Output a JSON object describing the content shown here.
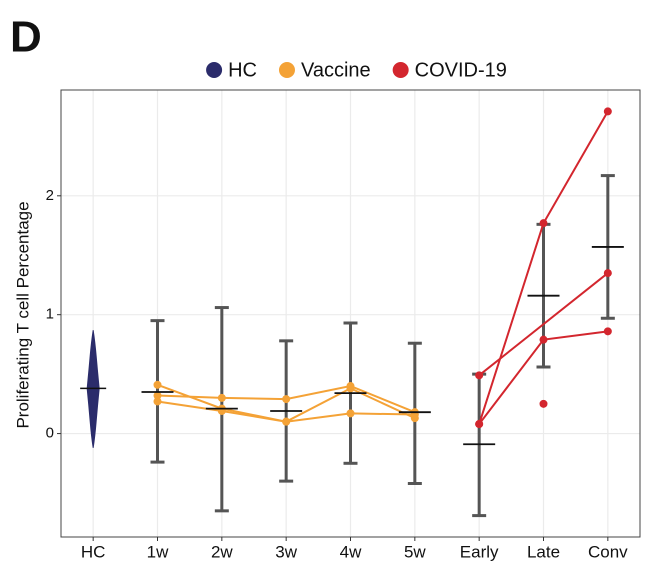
{
  "chart_data": {
    "type": "errorbar",
    "panel_label": "D",
    "ylabel": "Proliferating T cell Percentage",
    "categories": [
      "HC",
      "1w",
      "2w",
      "3w",
      "4w",
      "5w",
      "Early",
      "Late",
      "Conv"
    ],
    "mean": [
      0.38,
      0.35,
      0.21,
      0.19,
      0.34,
      0.18,
      -0.09,
      1.16,
      1.57
    ],
    "lower": [
      -0.12,
      -0.24,
      -0.65,
      -0.4,
      -0.25,
      -0.42,
      -0.69,
      0.56,
      0.97
    ],
    "upper": [
      0.87,
      0.95,
      1.06,
      0.78,
      0.93,
      0.76,
      0.5,
      1.76,
      2.17
    ],
    "ylim": [
      -0.87,
      2.89
    ],
    "yticks": [
      0,
      1,
      2
    ],
    "grid": true,
    "legend_position": "top",
    "groups": [
      {
        "name": "HC",
        "color": "#2b2c6b",
        "subjects": []
      },
      {
        "name": "Vaccine",
        "color": "#f4a236",
        "subjects": [
          {
            "x": [
              "1w",
              "2w",
              "3w",
              "4w",
              "5w"
            ],
            "values": [
              0.32,
              0.3,
              0.29,
              0.4,
              0.18
            ]
          },
          {
            "x": [
              "1w",
              "2w",
              "3w",
              "4w",
              "5w"
            ],
            "values": [
              0.41,
              0.21,
              0.1,
              0.38,
              0.13
            ]
          },
          {
            "x": [
              "1w",
              "2w",
              "3w",
              "4w",
              "5w"
            ],
            "values": [
              0.27,
              0.19,
              0.1,
              0.17,
              0.16
            ]
          }
        ]
      },
      {
        "name": "COVID-19",
        "color": "#d3262e",
        "subjects": [
          {
            "x": [
              "Early",
              "Late",
              "Conv"
            ],
            "values": [
              0.08,
              1.77,
              2.71
            ]
          },
          {
            "x": [
              "Early",
              "Conv"
            ],
            "values": [
              0.49,
              1.35
            ]
          },
          {
            "x": [
              "Early",
              "Late",
              "Conv"
            ],
            "values": [
              0.08,
              0.79,
              0.86
            ]
          },
          {
            "x": [
              "Late"
            ],
            "values": [
              0.25
            ]
          }
        ]
      }
    ]
  }
}
